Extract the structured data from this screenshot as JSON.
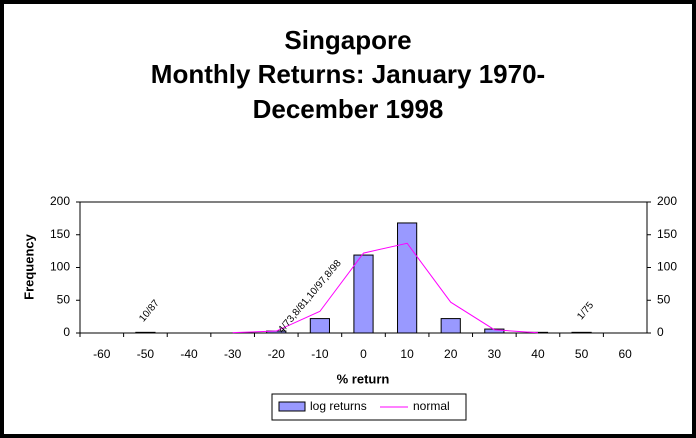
{
  "chart_data": {
    "type": "bar",
    "title": [
      "Singapore",
      "Monthly Returns: January 1970-",
      "December 1998"
    ],
    "categories": [
      "-60",
      "-50",
      "-40",
      "-30",
      "-20",
      "-10",
      "0",
      "10",
      "20",
      "30",
      "40",
      "50",
      "60"
    ],
    "series": [
      {
        "name": "log returns",
        "type": "bar",
        "color": "#9999ff",
        "values": [
          0,
          1,
          0,
          0,
          3,
          22,
          119,
          168,
          22,
          6,
          1,
          1,
          0
        ]
      },
      {
        "name": "normal",
        "type": "line",
        "color": "#ff00ff",
        "values": [
          null,
          null,
          null,
          0.5,
          3,
          33,
          122,
          137,
          47,
          5,
          0.3,
          null,
          null
        ]
      }
    ],
    "x_label": "% return",
    "y_label": "Frequency",
    "ylim": [
      0,
      200
    ],
    "yticks": [
      0,
      50,
      100,
      150,
      200
    ],
    "y2lim": [
      0,
      200
    ],
    "y2ticks": [
      0,
      50,
      100,
      150,
      200
    ],
    "annotations": [
      "10/87",
      "4/73,8/81,10/97,8/98",
      "1/75"
    ],
    "legend": "bottom"
  }
}
